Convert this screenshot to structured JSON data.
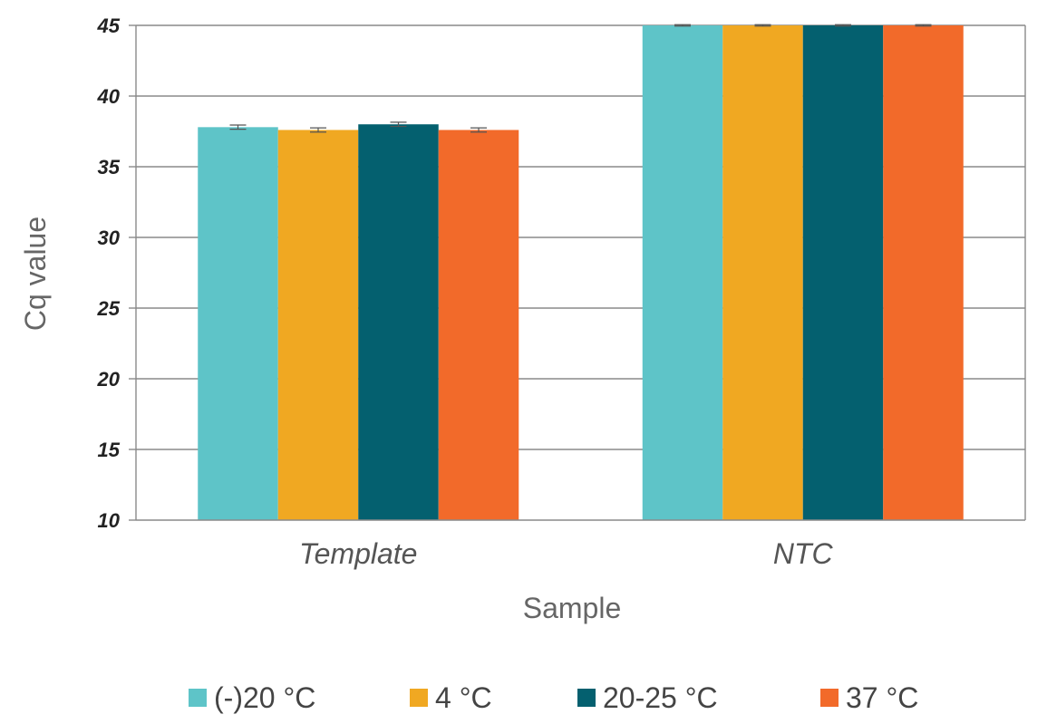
{
  "chart_data": {
    "type": "bar",
    "title": "",
    "xlabel": "Sample",
    "ylabel": "Cq value",
    "categories": [
      "Template",
      "NTC"
    ],
    "ylim": [
      10,
      45
    ],
    "yticks": [
      "10",
      "15",
      "20",
      "25",
      "30",
      "35",
      "40",
      "45"
    ],
    "grid": true,
    "legend_position": "bottom",
    "series": [
      {
        "name": "(-)20 °C",
        "color": "#5ec4c8",
        "values": [
          37.8,
          45
        ],
        "errors": [
          0.15,
          0.05
        ]
      },
      {
        "name": "4 °C",
        "color": "#f0a822",
        "values": [
          37.6,
          45
        ],
        "errors": [
          0.15,
          0.05
        ]
      },
      {
        "name": "20-25 °C",
        "color": "#04606f",
        "values": [
          38.0,
          45
        ],
        "errors": [
          0.15,
          0.05
        ]
      },
      {
        "name": "37 °C",
        "color": "#f26a2a",
        "values": [
          37.6,
          45
        ],
        "errors": [
          0.15,
          0.05
        ]
      }
    ]
  }
}
